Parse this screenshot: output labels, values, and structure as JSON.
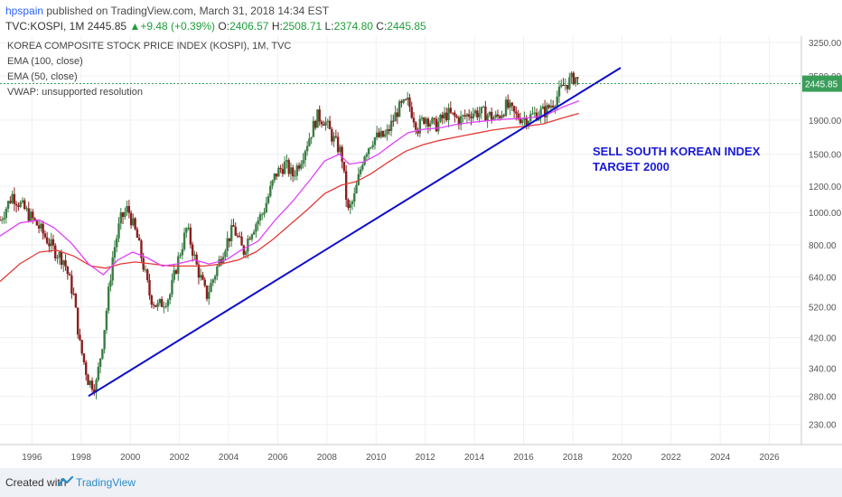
{
  "header": {
    "user": "hpspain",
    "published": " published on TradingView.com, March 31, 2018 14:34 EST",
    "symbol": "TVC:KOSPI, 1M",
    "last": "2445.85",
    "change": "+9.48 (+0.39%)",
    "o_label": "O:",
    "o_val": "2406.57",
    "h_label": "H:",
    "h_val": "2508.71",
    "l_label": "L:",
    "l_val": "2374.80",
    "c_label": "C:",
    "c_val": "2445.85"
  },
  "legend": [
    "KOREA COMPOSITE STOCK PRICE INDEX (KOSPI), 1M, TVC",
    "EMA (100, close)",
    "EMA (50, close)",
    "VWAP: unsupported resolution"
  ],
  "annotation": [
    "SELL SOUTH KOREAN INDEX",
    "TARGET 2000"
  ],
  "footer": {
    "created": "Created with",
    "brand": "TradingView"
  },
  "colors": {
    "ema100": "#e53935",
    "ema50": "#e040fb",
    "trend": "#0d0dcc",
    "up": "#3a7d44",
    "down": "#8b1e1e",
    "annotation": "#1a1ad6"
  },
  "chart_data": {
    "type": "candlestick",
    "yscale": "log",
    "ylim": [
      200,
      3400
    ],
    "xlim": [
      1994.7,
      2027.3
    ],
    "x_ticks": [
      "1996",
      "1998",
      "2000",
      "2002",
      "2004",
      "2006",
      "2008",
      "2010",
      "2012",
      "2014",
      "2016",
      "2018",
      "2020",
      "2022",
      "2024",
      "2026"
    ],
    "y_ticks": [
      "3250.00",
      "2580.00",
      "1900.00",
      "1500.00",
      "1200.00",
      "1000.00",
      "800.00",
      "640.00",
      "520.00",
      "420.00",
      "340.00",
      "280.00",
      "230.00"
    ],
    "last_price_label": "2445.85",
    "price_path": [
      [
        1994.7,
        950
      ],
      [
        1995.2,
        1130
      ],
      [
        1995.8,
        1000
      ],
      [
        1996.3,
        900
      ],
      [
        1996.9,
        770
      ],
      [
        1997.3,
        720
      ],
      [
        1997.7,
        560
      ],
      [
        1997.95,
        400
      ],
      [
        1998.3,
        310
      ],
      [
        1998.6,
        300
      ],
      [
        1998.9,
        420
      ],
      [
        1999.3,
        750
      ],
      [
        1999.6,
        950
      ],
      [
        1999.9,
        1030
      ],
      [
        2000.3,
        830
      ],
      [
        2000.8,
        560
      ],
      [
        2001.1,
        520
      ],
      [
        2001.6,
        560
      ],
      [
        2001.9,
        700
      ],
      [
        2002.3,
        900
      ],
      [
        2002.7,
        690
      ],
      [
        2003.1,
        560
      ],
      [
        2003.4,
        640
      ],
      [
        2003.8,
        780
      ],
      [
        2004.2,
        900
      ],
      [
        2004.6,
        760
      ],
      [
        2004.9,
        880
      ],
      [
        2005.4,
        1000
      ],
      [
        2005.9,
        1300
      ],
      [
        2006.3,
        1400
      ],
      [
        2006.6,
        1290
      ],
      [
        2006.9,
        1430
      ],
      [
        2007.3,
        1700
      ],
      [
        2007.6,
        1950
      ],
      [
        2007.9,
        1900
      ],
      [
        2008.2,
        1700
      ],
      [
        2008.6,
        1500
      ],
      [
        2008.85,
        1000
      ],
      [
        2009.1,
        1100
      ],
      [
        2009.5,
        1500
      ],
      [
        2009.9,
        1680
      ],
      [
        2010.4,
        1700
      ],
      [
        2010.9,
        2050
      ],
      [
        2011.3,
        2150
      ],
      [
        2011.7,
        1800
      ],
      [
        2012.0,
        1950
      ],
      [
        2012.4,
        1820
      ],
      [
        2012.9,
        1990
      ],
      [
        2013.4,
        1900
      ],
      [
        2013.9,
        2010
      ],
      [
        2014.4,
        1990
      ],
      [
        2014.9,
        1920
      ],
      [
        2015.3,
        2100
      ],
      [
        2015.7,
        1950
      ],
      [
        2016.1,
        1920
      ],
      [
        2016.6,
        2000
      ],
      [
        2016.9,
        2020
      ],
      [
        2017.3,
        2200
      ],
      [
        2017.6,
        2400
      ],
      [
        2017.9,
        2500
      ],
      [
        2018.1,
        2570
      ],
      [
        2018.25,
        2445.85
      ]
    ],
    "ema50": [
      [
        1994.7,
        850
      ],
      [
        1995.5,
        930
      ],
      [
        1996.3,
        950
      ],
      [
        1996.9,
        900
      ],
      [
        1997.6,
        810
      ],
      [
        1998.3,
        700
      ],
      [
        1998.9,
        650
      ],
      [
        1999.5,
        720
      ],
      [
        2000.1,
        760
      ],
      [
        2000.7,
        730
      ],
      [
        2001.3,
        690
      ],
      [
        2001.9,
        700
      ],
      [
        2002.6,
        720
      ],
      [
        2003.2,
        700
      ],
      [
        2003.9,
        720
      ],
      [
        2004.5,
        770
      ],
      [
        2005.2,
        820
      ],
      [
        2005.9,
        950
      ],
      [
        2006.6,
        1080
      ],
      [
        2007.3,
        1250
      ],
      [
        2007.9,
        1430
      ],
      [
        2008.5,
        1500
      ],
      [
        2008.9,
        1400
      ],
      [
        2009.5,
        1420
      ],
      [
        2010.1,
        1500
      ],
      [
        2010.7,
        1620
      ],
      [
        2011.3,
        1740
      ],
      [
        2011.9,
        1780
      ],
      [
        2012.6,
        1800
      ],
      [
        2013.2,
        1840
      ],
      [
        2013.9,
        1870
      ],
      [
        2014.5,
        1890
      ],
      [
        2015.2,
        1910
      ],
      [
        2015.8,
        1920
      ],
      [
        2016.4,
        1935
      ],
      [
        2017.0,
        1980
      ],
      [
        2017.6,
        2080
      ],
      [
        2018.25,
        2170
      ]
    ],
    "ema100": [
      [
        1994.7,
        620
      ],
      [
        1995.5,
        700
      ],
      [
        1996.3,
        760
      ],
      [
        1997.0,
        770
      ],
      [
        1997.7,
        740
      ],
      [
        1998.4,
        690
      ],
      [
        1999.0,
        680
      ],
      [
        1999.6,
        700
      ],
      [
        2000.2,
        710
      ],
      [
        2000.9,
        700
      ],
      [
        2001.6,
        690
      ],
      [
        2002.3,
        690
      ],
      [
        2003.0,
        690
      ],
      [
        2003.7,
        700
      ],
      [
        2004.4,
        720
      ],
      [
        2005.1,
        760
      ],
      [
        2005.8,
        830
      ],
      [
        2006.5,
        920
      ],
      [
        2007.2,
        1020
      ],
      [
        2007.9,
        1140
      ],
      [
        2008.6,
        1210
      ],
      [
        2009.2,
        1240
      ],
      [
        2009.8,
        1310
      ],
      [
        2010.5,
        1420
      ],
      [
        2011.2,
        1530
      ],
      [
        2011.9,
        1600
      ],
      [
        2012.6,
        1650
      ],
      [
        2013.3,
        1690
      ],
      [
        2014.0,
        1730
      ],
      [
        2014.7,
        1770
      ],
      [
        2015.4,
        1800
      ],
      [
        2016.1,
        1820
      ],
      [
        2016.8,
        1850
      ],
      [
        2017.5,
        1920
      ],
      [
        2018.25,
        1990
      ]
    ],
    "trendline": [
      [
        1998.3,
        280
      ],
      [
        2019.95,
        2730
      ]
    ],
    "annotation_text": [
      "SELL SOUTH KOREAN INDEX",
      "TARGET 2000"
    ]
  }
}
